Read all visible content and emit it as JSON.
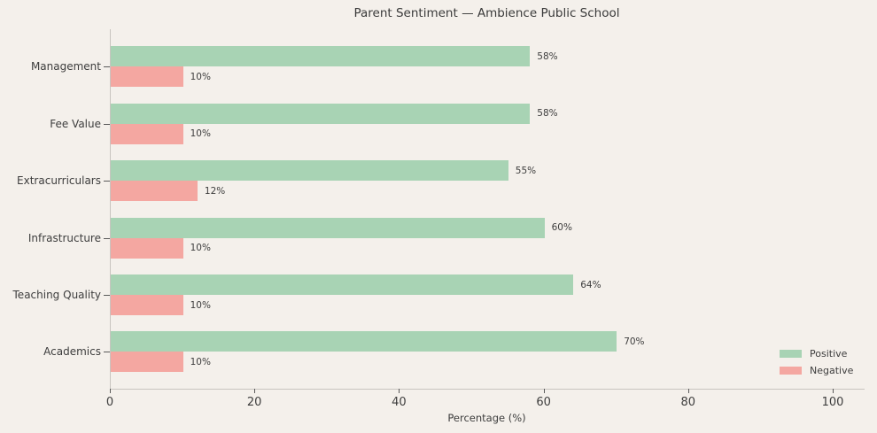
{
  "title": "Parent Sentiment — Ambience Public School",
  "xlabel": "Percentage (%)",
  "colors": {
    "positive": "#a8d3b4",
    "negative": "#f4a7a1",
    "background": "#f4f0eb",
    "text": "#3d3d3d",
    "spine": "#c9c5c0"
  },
  "chart_data": {
    "type": "bar",
    "orientation": "horizontal",
    "title": "Parent Sentiment — Ambience Public School",
    "xlabel": "Percentage (%)",
    "ylabel": "",
    "categories": [
      "Management",
      "Fee Value",
      "Extracurriculars",
      "Infrastructure",
      "Teaching Quality",
      "Academics"
    ],
    "series": [
      {
        "name": "Positive",
        "color": "#a8d3b4",
        "values": [
          58,
          58,
          55,
          60,
          64,
          70
        ],
        "labels": [
          "58%",
          "58%",
          "55%",
          "60%",
          "64%",
          "70%"
        ]
      },
      {
        "name": "Negative",
        "color": "#f4a7a1",
        "values": [
          10,
          10,
          12,
          10,
          10,
          10
        ],
        "labels": [
          "10%",
          "10%",
          "12%",
          "10%",
          "10%",
          "10%"
        ]
      }
    ],
    "x_ticks": [
      0,
      20,
      40,
      60,
      80,
      100
    ],
    "xlim": [
      0,
      100
    ],
    "grid": false,
    "legend_position": "lower right"
  },
  "legend": {
    "items": [
      {
        "label": "Positive",
        "color": "#a8d3b4"
      },
      {
        "label": "Negative",
        "color": "#f4a7a1"
      }
    ]
  }
}
